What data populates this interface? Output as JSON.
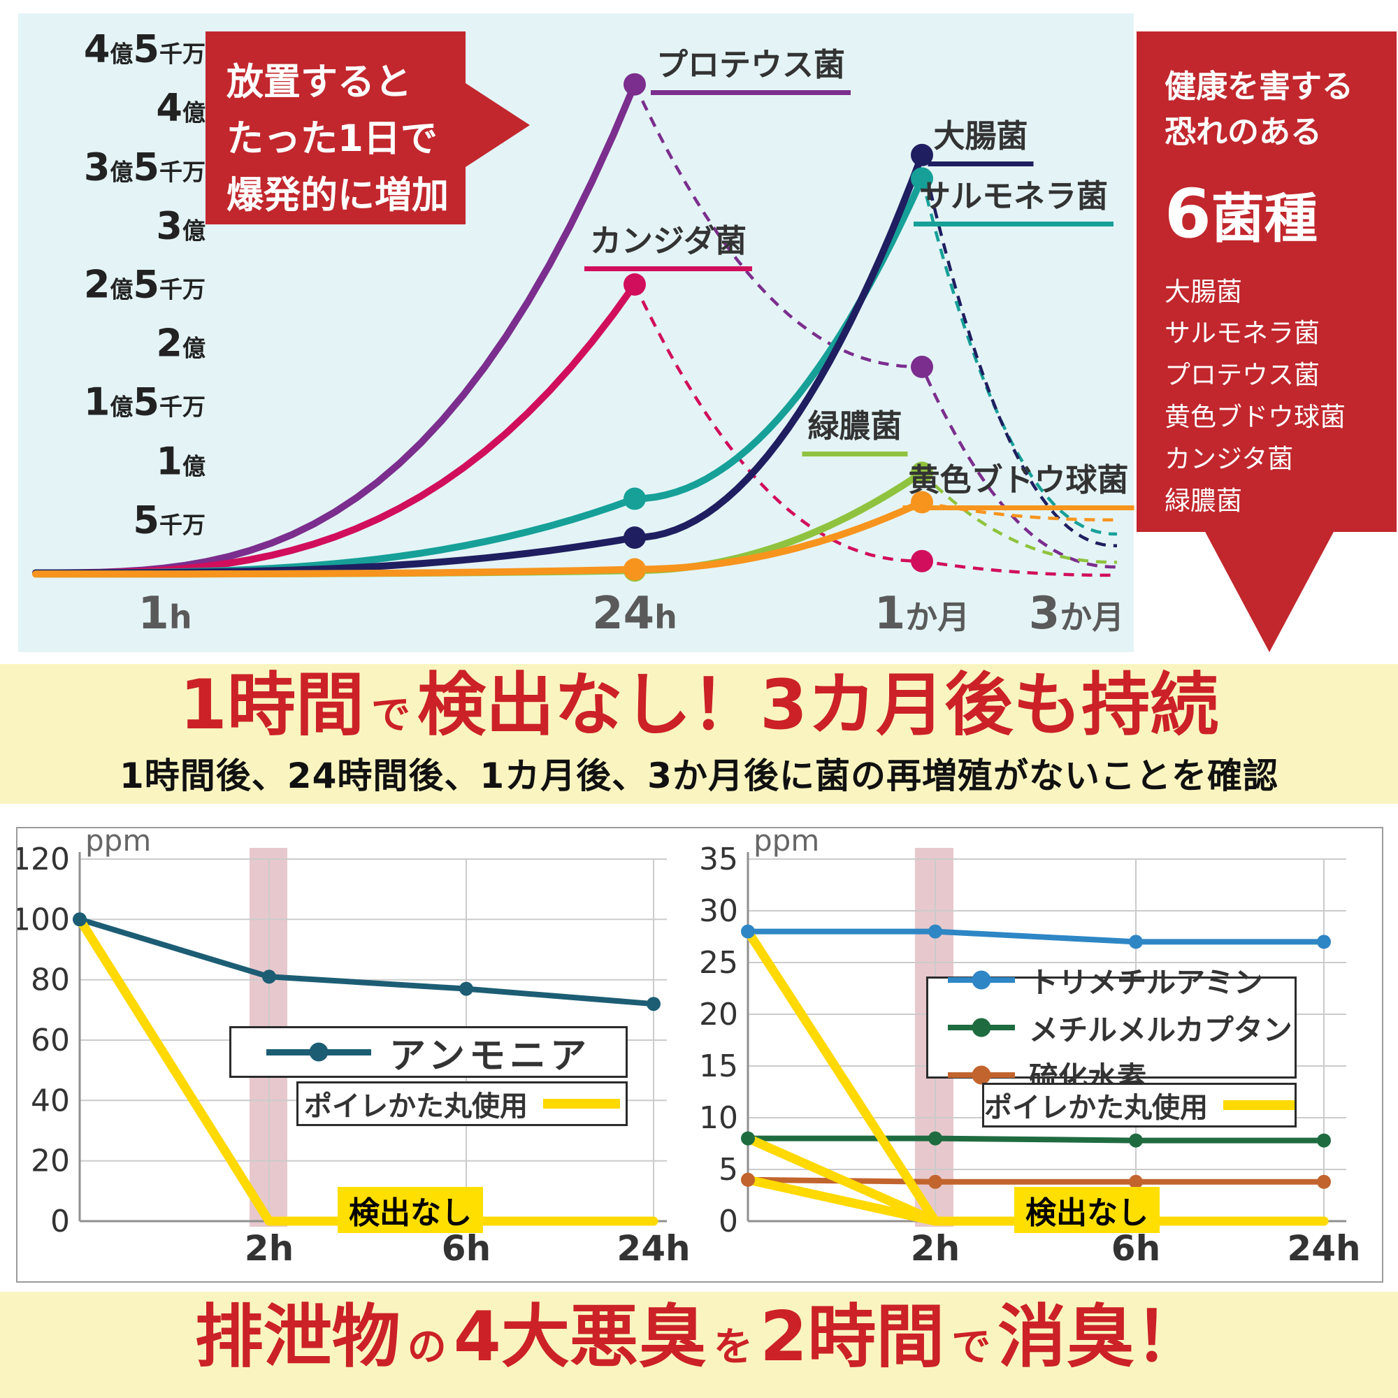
{
  "colors": {
    "accent_red": "#C1272D",
    "heading_red": "#CB2127",
    "banner_bg": "#FAF5C0",
    "top_chart_bg": "#E4F4F6",
    "product_yellow": "#FFD900",
    "highlight_band_pink": "#C9848E"
  },
  "top_section": {
    "callout": {
      "lines": [
        "放置すると",
        "たった1日で",
        "爆発的に増加"
      ]
    },
    "side_panel": {
      "heading_lines": [
        "健康を害する",
        "恐れのある"
      ],
      "count_label": "6菌種",
      "items": [
        "大腸菌",
        "サルモネラ菌",
        "プロテウス菌",
        "黄色ブドウ球菌",
        "カンジタ菌",
        "緑膿菌"
      ]
    }
  },
  "banner1": {
    "heading_segments": [
      {
        "text": "1時間",
        "size": "big"
      },
      {
        "text": "で",
        "size": "small"
      },
      {
        "text": "検出なし！3カ月後も持続",
        "size": "big"
      }
    ],
    "subtitle": "1時間後、24時間後、1カ月後、3か月後に菌の再増殖がないことを確認"
  },
  "banner2": {
    "heading_segments": [
      {
        "text": "排泄物",
        "size": "big"
      },
      {
        "text": "の",
        "size": "small"
      },
      {
        "text": "4大悪臭",
        "size": "big"
      },
      {
        "text": "を",
        "size": "small"
      },
      {
        "text": "2時間",
        "size": "big"
      },
      {
        "text": "で",
        "size": "small"
      },
      {
        "text": "消臭！",
        "size": "big"
      }
    ]
  },
  "chart_data": [
    {
      "id": "bacteria-growth",
      "type": "line",
      "title": "",
      "x_stations": [
        "1h",
        "24h",
        "1か月",
        "3か月"
      ],
      "y_tick_labels": [
        "5千万",
        "1億",
        "1億5千万",
        "2億",
        "2億5千万",
        "3億",
        "3億5千万",
        "4億",
        "4億5千万"
      ],
      "y_tick_values_oku": [
        0.5,
        1,
        1.5,
        2,
        2.5,
        3,
        3.5,
        4,
        4.5
      ],
      "ylim_oku": [
        0,
        4.6
      ],
      "grid": false,
      "legend_position": "labels-on-chart",
      "series": [
        {
          "name": "プロテウス菌",
          "color": "#7B2E8D",
          "values_oku": [
            0.05,
            4.2,
            1.8,
            0.1
          ],
          "dash_from_index": 1,
          "dot_indices": [
            1,
            2
          ]
        },
        {
          "name": "カンジダ菌",
          "color": "#D10E5C",
          "values_oku": [
            0.05,
            2.5,
            0.15,
            0.03
          ],
          "dash_from_index": 1,
          "dot_indices": [
            1,
            2
          ]
        },
        {
          "name": "サルモネラ菌",
          "color": "#16A098",
          "values_oku": [
            0.05,
            0.68,
            3.4,
            0.38
          ],
          "dash_from_index": 2,
          "dot_indices": [
            1,
            2
          ]
        },
        {
          "name": "大腸菌",
          "color": "#1F1E60",
          "values_oku": [
            0.05,
            0.35,
            3.6,
            0.28
          ],
          "dash_from_index": 2,
          "dot_indices": [
            1,
            2
          ]
        },
        {
          "name": "緑膿菌",
          "color": "#8FC33F",
          "values_oku": [
            0.04,
            0.07,
            0.9,
            0.14
          ],
          "dash_from_index": 2,
          "dot_indices": [
            1,
            2
          ]
        },
        {
          "name": "黄色ブドウ球菌",
          "color": "#F7941E",
          "values_oku": [
            0.04,
            0.08,
            0.65,
            0.5
          ],
          "dash_from_index": 2,
          "dot_indices": [
            1,
            2
          ]
        }
      ]
    },
    {
      "id": "ammonia-deodorize",
      "type": "line",
      "title": "",
      "y_axis_unit": "ppm",
      "x_points": [
        "start",
        "2h",
        "6h",
        "24h"
      ],
      "x_ticks": [
        "2h",
        "6h",
        "24h"
      ],
      "y_ticks": [
        0,
        20,
        40,
        60,
        80,
        100,
        120
      ],
      "ylim": [
        0,
        120
      ],
      "grid": true,
      "highlight_x": "2h",
      "annotations": {
        "no_detect": "検出なし"
      },
      "series": [
        {
          "name": "アンモニア",
          "color": "#1C5D74",
          "values": [
            100,
            81,
            77,
            72
          ],
          "markers": true
        },
        {
          "name": "ポイレかた丸使用",
          "color": "#FFD900",
          "values": [
            100,
            0,
            0,
            0
          ],
          "markers": false
        }
      ]
    },
    {
      "id": "gas-deodorize",
      "type": "line",
      "title": "",
      "y_axis_unit": "ppm",
      "x_points": [
        "start",
        "2h",
        "6h",
        "24h"
      ],
      "x_ticks": [
        "2h",
        "6h",
        "24h"
      ],
      "y_ticks": [
        0,
        5,
        10,
        15,
        20,
        25,
        30,
        35
      ],
      "ylim": [
        0,
        35
      ],
      "grid": true,
      "highlight_x": "2h",
      "annotations": {
        "no_detect": "検出なし"
      },
      "series": [
        {
          "name": "トリメチルアミン",
          "color": "#2E86C5",
          "values": [
            28,
            28,
            27,
            27
          ],
          "markers": true
        },
        {
          "name": "メチルメルカプタン",
          "color": "#1F6B40",
          "values": [
            8,
            8,
            7.8,
            7.8
          ],
          "markers": true
        },
        {
          "name": "硫化水素",
          "color": "#C2642E",
          "values": [
            4,
            3.8,
            3.8,
            3.8
          ],
          "markers": true
        },
        {
          "name": "ポイレかた丸使用",
          "color": "#FFD900",
          "values_multi": [
            [
              28,
              0,
              0,
              0
            ],
            [
              8,
              0,
              0,
              0
            ],
            [
              4,
              0,
              0,
              0
            ]
          ],
          "markers": false
        }
      ]
    }
  ]
}
